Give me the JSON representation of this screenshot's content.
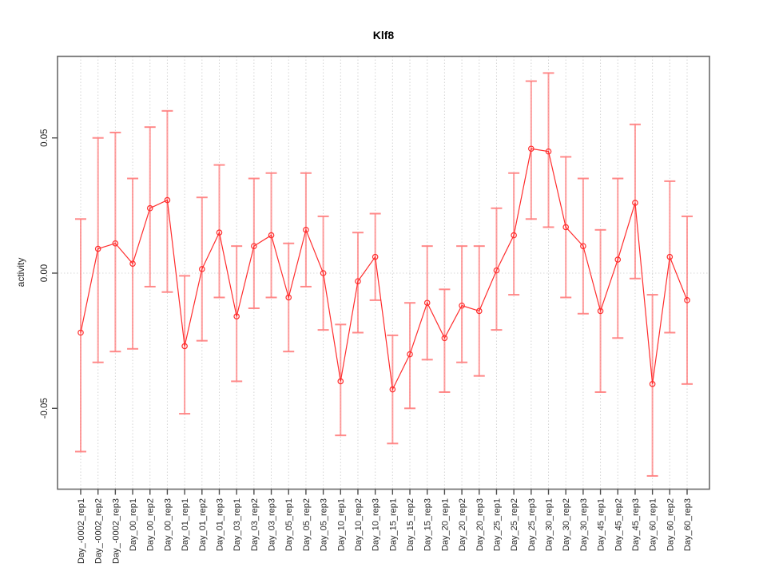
{
  "title": "Klf8",
  "colors": {
    "series": "#ff2d2d",
    "error_bar": "#ff7d7d",
    "grid": "#d4d4d4",
    "zero_line": "#d9d9d9",
    "axis": "#6b6b6b",
    "tick": "#4d4d4d",
    "text": "#262626",
    "title_text": "#000000",
    "background": "#ffffff"
  },
  "chart_data": {
    "type": "line",
    "title": "Klf8",
    "xlabel": "",
    "ylabel": "activity",
    "ylim": [
      -0.08,
      0.08
    ],
    "yticks": [
      -0.05,
      0.0,
      0.05
    ],
    "ytick_labels": [
      "-0.05",
      "0.00",
      "0.05"
    ],
    "grid": "dotted vertical gridline at every category; dotted horizontal line at y=0",
    "legend_position": "none",
    "point_marker": "open-circle",
    "xticklabel_rotation": 90,
    "categories": [
      "Day_-0002_rep1",
      "Day_-0002_rep2",
      "Day_-0002_rep3",
      "Day_00_rep1",
      "Day_00_rep2",
      "Day_00_rep3",
      "Day_01_rep1",
      "Day_01_rep2",
      "Day_01_rep3",
      "Day_03_rep1",
      "Day_03_rep2",
      "Day_03_rep3",
      "Day_05_rep1",
      "Day_05_rep2",
      "Day_05_rep3",
      "Day_10_rep1",
      "Day_10_rep2",
      "Day_10_rep3",
      "Day_15_rep1",
      "Day_15_rep2",
      "Day_15_rep3",
      "Day_20_rep1",
      "Day_20_rep2",
      "Day_20_rep3",
      "Day_25_rep1",
      "Day_25_rep2",
      "Day_25_rep3",
      "Day_30_rep1",
      "Day_30_rep2",
      "Day_30_rep3",
      "Day_45_rep1",
      "Day_45_rep2",
      "Day_45_rep3",
      "Day_60_rep1",
      "Day_60_rep2",
      "Day_60_rep3"
    ],
    "series": [
      {
        "name": "Klf8 activity",
        "values": [
          -0.022,
          0.009,
          0.011,
          0.0035,
          0.024,
          0.027,
          -0.027,
          0.0015,
          0.015,
          -0.016,
          0.01,
          0.014,
          -0.009,
          0.016,
          0.0,
          -0.04,
          -0.003,
          0.006,
          -0.043,
          -0.03,
          -0.011,
          -0.024,
          -0.012,
          -0.014,
          0.001,
          0.014,
          0.046,
          0.045,
          0.017,
          0.01,
          -0.014,
          0.005,
          0.026,
          -0.041,
          0.006,
          -0.01
        ],
        "err_high": [
          0.02,
          0.05,
          0.052,
          0.035,
          0.054,
          0.06,
          -0.001,
          0.028,
          0.04,
          0.01,
          0.035,
          0.037,
          0.011,
          0.037,
          0.021,
          -0.019,
          0.015,
          0.022,
          -0.023,
          -0.011,
          0.01,
          -0.006,
          0.01,
          0.01,
          0.024,
          0.037,
          0.071,
          0.074,
          0.043,
          0.035,
          0.016,
          0.035,
          0.055,
          -0.008,
          0.034,
          0.021
        ],
        "err_low": [
          -0.066,
          -0.033,
          -0.029,
          -0.028,
          -0.005,
          -0.007,
          -0.052,
          -0.025,
          -0.009,
          -0.04,
          -0.013,
          -0.009,
          -0.029,
          -0.005,
          -0.021,
          -0.06,
          -0.022,
          -0.01,
          -0.063,
          -0.05,
          -0.032,
          -0.044,
          -0.033,
          -0.038,
          -0.021,
          -0.008,
          0.02,
          0.017,
          -0.009,
          -0.015,
          -0.044,
          -0.024,
          -0.002,
          -0.075,
          -0.022,
          -0.041
        ]
      }
    ]
  }
}
